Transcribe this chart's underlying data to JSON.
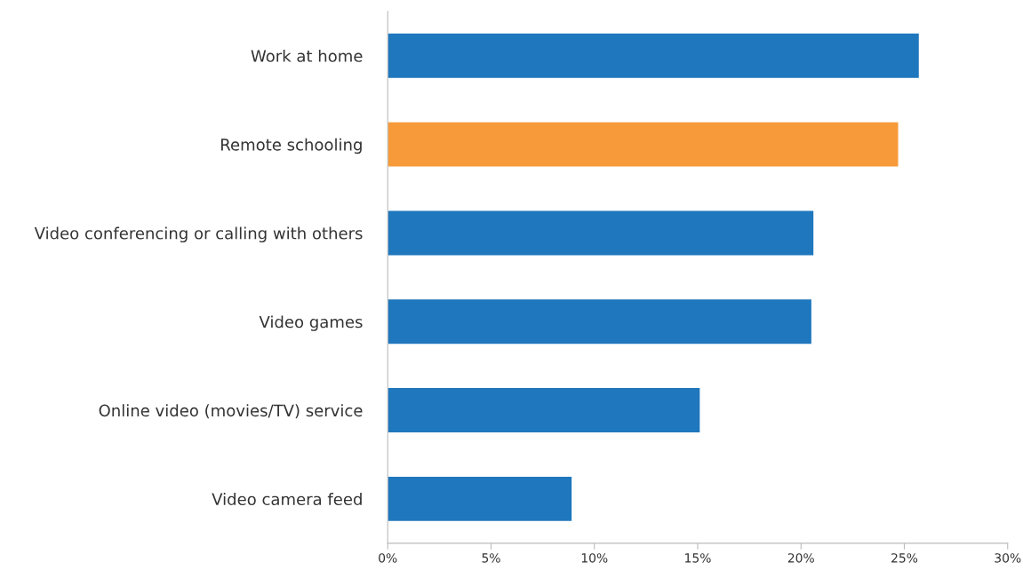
{
  "chart_data": {
    "type": "bar",
    "orientation": "horizontal",
    "categories": [
      "Work at home",
      "Remote schooling",
      "Video conferencing or calling with others",
      "Video games",
      "Online video (movies/TV) service",
      "Video camera feed"
    ],
    "values": [
      25.7,
      24.7,
      20.6,
      20.5,
      15.1,
      8.9
    ],
    "colors": [
      "#1f77bd",
      "#f79a3a",
      "#1f77bd",
      "#1f77bd",
      "#1f77bd",
      "#1f77bd"
    ],
    "xlim": [
      0,
      30
    ],
    "xticks": [
      {
        "value": 0,
        "label": "0%"
      },
      {
        "value": 5,
        "label": "5%"
      },
      {
        "value": 10,
        "label": "10%"
      },
      {
        "value": 15,
        "label": "15%"
      },
      {
        "value": 20,
        "label": "20%"
      },
      {
        "value": 25,
        "label": "25%"
      },
      {
        "value": 30,
        "label": "30%"
      }
    ],
    "grid": false,
    "legend": false
  }
}
